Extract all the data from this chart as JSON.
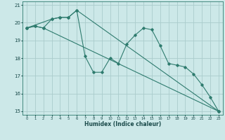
{
  "title": "",
  "xlabel": "Humidex (Indice chaleur)",
  "background_color": "#cce8e8",
  "grid_color": "#aacccc",
  "line_color": "#2e7b6e",
  "xlim": [
    -0.5,
    23.5
  ],
  "ylim": [
    14.8,
    21.2
  ],
  "yticks": [
    15,
    16,
    17,
    18,
    19,
    20,
    21
  ],
  "xticks": [
    0,
    1,
    2,
    3,
    4,
    5,
    6,
    7,
    8,
    9,
    10,
    11,
    12,
    13,
    14,
    15,
    16,
    17,
    18,
    19,
    20,
    21,
    22,
    23
  ],
  "series1_x": [
    0,
    1,
    2,
    3,
    4,
    5,
    6,
    7,
    8,
    9,
    10,
    11,
    12,
    13,
    14,
    15,
    16,
    17,
    18,
    19,
    20,
    21,
    22,
    23
  ],
  "series1_y": [
    19.7,
    19.8,
    19.7,
    20.2,
    20.3,
    20.3,
    20.7,
    18.1,
    17.2,
    17.2,
    18.0,
    17.7,
    18.8,
    19.3,
    19.7,
    19.6,
    18.7,
    17.7,
    17.6,
    17.5,
    17.1,
    16.5,
    15.8,
    15.0
  ],
  "series2_x": [
    0,
    3,
    4,
    5,
    6,
    23
  ],
  "series2_y": [
    19.7,
    20.2,
    20.3,
    20.3,
    20.7,
    15.0
  ],
  "series3_x": [
    0,
    1,
    2,
    23
  ],
  "series3_y": [
    19.7,
    19.8,
    19.7,
    15.0
  ]
}
